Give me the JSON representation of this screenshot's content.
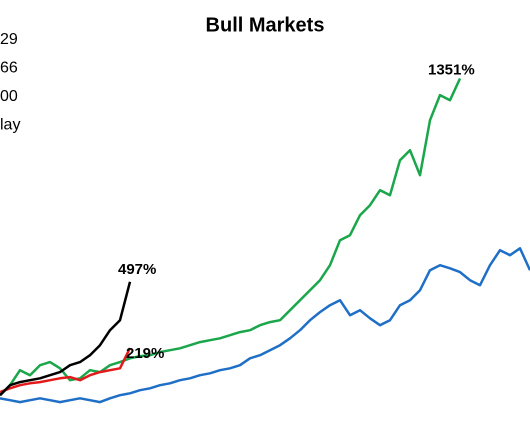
{
  "chart_data": {
    "type": "line",
    "title": "Bull Markets",
    "legend": [
      "29",
      "66",
      "00",
      "lay"
    ],
    "annotations": [
      "1351%",
      "497%",
      "219%"
    ],
    "xlim": [
      0,
      53
    ],
    "ylim": [
      -100,
      1500
    ],
    "series": [
      {
        "color": "#1f6fc6",
        "values": [
          8,
          0,
          -8,
          0,
          8,
          0,
          -8,
          0,
          8,
          0,
          -8,
          8,
          21,
          29,
          42,
          50,
          63,
          71,
          84,
          92,
          105,
          113,
          126,
          134,
          147,
          176,
          189,
          210,
          231,
          260,
          294,
          336,
          370,
          399,
          420,
          357,
          378,
          344,
          315,
          336,
          399,
          420,
          462,
          546,
          567,
          554,
          538,
          504,
          483,
          567,
          630,
          609,
          638,
          546
        ]
      },
      {
        "color": "#1aa64a",
        "values": [
          20,
          63,
          126,
          105,
          147,
          160,
          134,
          84,
          92,
          126,
          118,
          147,
          160,
          176,
          185,
          189,
          202,
          210,
          218,
          231,
          244,
          252,
          260,
          273,
          286,
          294,
          315,
          328,
          336,
          378,
          420,
          462,
          504,
          567,
          672,
          693,
          777,
          819,
          882,
          861,
          1008,
          1050,
          945,
          1176,
          1281,
          1260,
          1351
        ]
      },
      {
        "color": "#e31a1c",
        "values": [
          34,
          50,
          63,
          71,
          76,
          84,
          92,
          97,
          84,
          105,
          118,
          126,
          134,
          219
        ]
      },
      {
        "color": "#000000",
        "values": [
          21,
          63,
          76,
          84,
          92,
          105,
          118,
          147,
          160,
          189,
          231,
          294,
          336,
          497
        ]
      }
    ]
  }
}
